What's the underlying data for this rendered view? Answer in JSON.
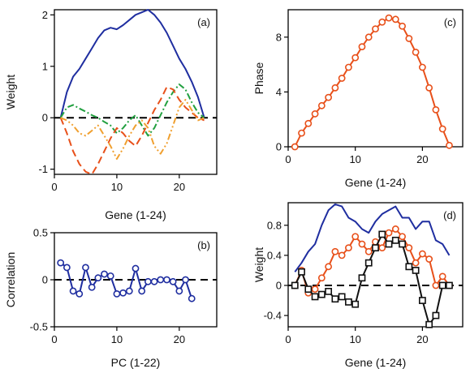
{
  "chart_data": [
    {
      "id": "a",
      "type": "line",
      "panel_label": "(a)",
      "xlabel": "Gene (1-24)",
      "ylabel": "Weight",
      "xlim": [
        0,
        26
      ],
      "ylim": [
        -1.1,
        2.1
      ],
      "xticks": [
        0,
        10,
        20
      ],
      "yticks": [
        -1,
        0,
        1,
        2
      ],
      "zero_line": true,
      "series": [
        {
          "color": "#1f2ea0",
          "dash": "",
          "x": [
            1,
            2,
            3,
            4,
            5,
            6,
            7,
            8,
            9,
            10,
            11,
            12,
            13,
            14,
            15,
            16,
            17,
            18,
            19,
            20,
            21,
            22,
            23,
            24
          ],
          "values": [
            0.0,
            0.5,
            0.8,
            0.95,
            1.15,
            1.35,
            1.55,
            1.7,
            1.75,
            1.72,
            1.8,
            1.9,
            2.0,
            2.05,
            2.1,
            2.0,
            1.85,
            1.65,
            1.4,
            1.15,
            0.95,
            0.7,
            0.4,
            0.0
          ]
        },
        {
          "color": "#22a040",
          "dash": "8 3 2 3",
          "x": [
            1,
            2,
            3,
            4,
            5,
            6,
            7,
            8,
            9,
            10,
            11,
            12,
            13,
            14,
            15,
            16,
            17,
            18,
            19,
            20,
            21,
            22,
            23,
            24
          ],
          "values": [
            0.0,
            0.2,
            0.25,
            0.18,
            0.12,
            0.05,
            0.0,
            -0.08,
            -0.15,
            -0.3,
            -0.2,
            -0.05,
            0.05,
            -0.15,
            -0.35,
            -0.2,
            0.05,
            0.3,
            0.5,
            0.65,
            0.55,
            0.3,
            0.1,
            0.0
          ]
        },
        {
          "color": "#e8501a",
          "dash": "9 5",
          "x": [
            1,
            2,
            3,
            4,
            5,
            6,
            7,
            8,
            9,
            10,
            11,
            12,
            13,
            14,
            15,
            16,
            17,
            18,
            19,
            20,
            21,
            22,
            23,
            24
          ],
          "values": [
            0.0,
            -0.3,
            -0.65,
            -0.9,
            -1.05,
            -1.1,
            -0.9,
            -0.65,
            -0.4,
            -0.2,
            -0.3,
            -0.45,
            -0.55,
            -0.35,
            -0.1,
            0.15,
            0.35,
            0.6,
            0.55,
            0.35,
            0.2,
            0.1,
            0.0,
            -0.05
          ]
        },
        {
          "color": "#f0a030",
          "dash": "8 3 2 3 2 3",
          "x": [
            1,
            2,
            3,
            4,
            5,
            6,
            7,
            8,
            9,
            10,
            11,
            12,
            13,
            14,
            15,
            16,
            17,
            18,
            19,
            20,
            21,
            22,
            23,
            24
          ],
          "values": [
            0.0,
            -0.05,
            -0.15,
            -0.3,
            -0.35,
            -0.25,
            -0.15,
            -0.35,
            -0.55,
            -0.8,
            -0.6,
            -0.35,
            -0.15,
            -0.05,
            -0.2,
            -0.55,
            -0.7,
            -0.5,
            -0.15,
            0.2,
            0.35,
            0.15,
            -0.05,
            0.0
          ]
        }
      ]
    },
    {
      "id": "b",
      "type": "line",
      "panel_label": "(b)",
      "xlabel": "PC (1-22)",
      "ylabel": "Correlation",
      "xlim": [
        0,
        26
      ],
      "ylim": [
        -0.5,
        0.5
      ],
      "xticks": [
        0,
        10,
        20
      ],
      "yticks": [
        -0.5,
        0,
        0.5
      ],
      "ytick_labels": [
        "-0.5",
        "0",
        "0.5"
      ],
      "zero_line": true,
      "series": [
        {
          "color": "#1f2ea0",
          "marker": "circle",
          "x": [
            1,
            2,
            3,
            4,
            5,
            6,
            7,
            8,
            9,
            10,
            11,
            12,
            13,
            14,
            15,
            16,
            17,
            18,
            19,
            20,
            21,
            22
          ],
          "values": [
            0.18,
            0.13,
            -0.12,
            -0.15,
            0.13,
            -0.08,
            0.02,
            0.06,
            0.04,
            -0.15,
            -0.14,
            -0.12,
            0.12,
            -0.12,
            -0.02,
            -0.02,
            0.0,
            0.0,
            -0.02,
            -0.12,
            0.0,
            -0.2
          ]
        }
      ]
    },
    {
      "id": "c",
      "type": "line",
      "panel_label": "(c)",
      "xlabel": "Gene (1-24)",
      "ylabel": "Phase",
      "xlim": [
        0,
        26
      ],
      "ylim": [
        0,
        10
      ],
      "xticks": [
        0,
        10,
        20
      ],
      "yticks": [
        0,
        4,
        8
      ],
      "series": [
        {
          "color": "#e8501a",
          "marker": "circle",
          "x": [
            1,
            2,
            3,
            4,
            5,
            6,
            7,
            8,
            9,
            10,
            11,
            12,
            13,
            14,
            15,
            16,
            17,
            18,
            19,
            20,
            21,
            22,
            23,
            24
          ],
          "values": [
            0.0,
            1.0,
            1.7,
            2.4,
            3.0,
            3.6,
            4.3,
            5.0,
            5.8,
            6.5,
            7.3,
            8.0,
            8.6,
            9.1,
            9.4,
            9.3,
            8.8,
            7.9,
            6.9,
            5.8,
            4.3,
            2.7,
            1.3,
            0.1
          ]
        }
      ]
    },
    {
      "id": "d",
      "type": "line",
      "panel_label": "(d)",
      "xlabel": "Gene (1-24)",
      "ylabel": "Weight",
      "xlim": [
        0,
        26
      ],
      "ylim": [
        -0.55,
        1.1
      ],
      "xticks": [
        0,
        10,
        20
      ],
      "yticks": [
        -0.4,
        0,
        0.4,
        0.8
      ],
      "zero_line": true,
      "series": [
        {
          "color": "#1f2ea0",
          "x": [
            1,
            2,
            3,
            4,
            5,
            6,
            7,
            8,
            9,
            10,
            11,
            12,
            13,
            14,
            15,
            16,
            17,
            18,
            19,
            20,
            21,
            22,
            23,
            24
          ],
          "values": [
            0.18,
            0.3,
            0.45,
            0.55,
            0.8,
            1.0,
            1.08,
            1.05,
            0.9,
            0.85,
            0.75,
            0.7,
            0.85,
            0.95,
            1.0,
            1.05,
            0.9,
            0.9,
            0.75,
            0.85,
            0.85,
            0.6,
            0.55,
            0.4
          ]
        },
        {
          "color": "#e8501a",
          "marker": "circle",
          "x": [
            1,
            2,
            3,
            4,
            5,
            6,
            7,
            8,
            9,
            10,
            11,
            12,
            13,
            14,
            15,
            16,
            17,
            18,
            19,
            20,
            21,
            22,
            23,
            24
          ],
          "values": [
            0.0,
            0.2,
            -0.1,
            -0.05,
            0.1,
            0.25,
            0.45,
            0.4,
            0.5,
            0.65,
            0.55,
            0.45,
            0.58,
            0.5,
            0.7,
            0.75,
            0.65,
            0.5,
            0.3,
            0.42,
            0.35,
            0.0,
            0.12,
            0.0
          ]
        },
        {
          "color": "#111111",
          "marker": "square",
          "x": [
            1,
            2,
            3,
            4,
            5,
            6,
            7,
            8,
            9,
            10,
            11,
            12,
            13,
            14,
            15,
            16,
            17,
            18,
            19,
            20,
            21,
            22,
            23,
            24
          ],
          "values": [
            0.0,
            0.18,
            -0.05,
            -0.15,
            -0.12,
            -0.08,
            -0.18,
            -0.15,
            -0.22,
            -0.25,
            0.1,
            0.3,
            0.5,
            0.68,
            0.55,
            0.6,
            0.55,
            0.25,
            0.2,
            -0.2,
            -0.52,
            -0.4,
            0.0,
            0.0
          ]
        }
      ]
    }
  ]
}
